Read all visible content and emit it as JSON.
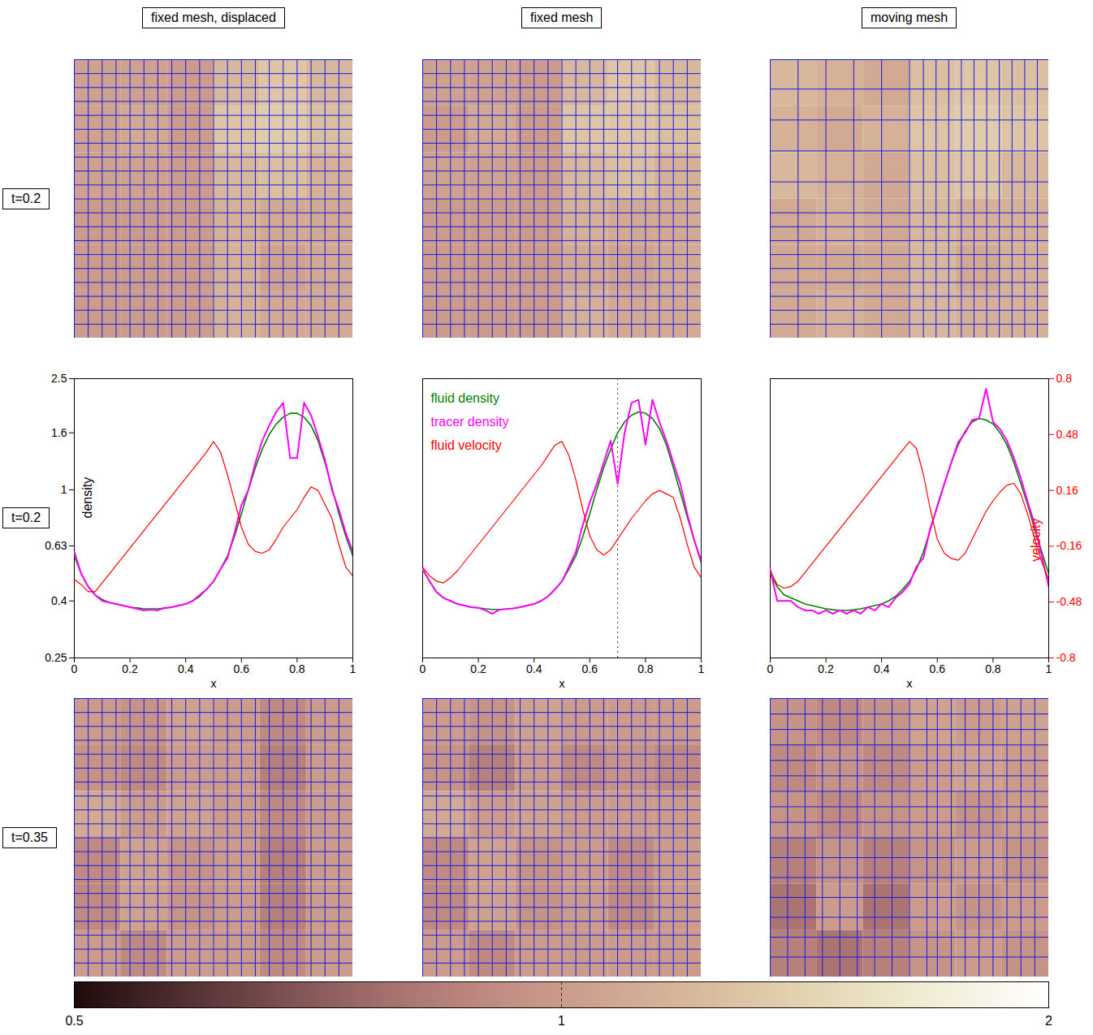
{
  "columns": [
    "fixed mesh, displaced",
    "fixed mesh",
    "moving mesh"
  ],
  "rows": [
    "t=0.2",
    "t=0.2",
    "t=0.35"
  ],
  "colorbar": {
    "lim": [
      0.5,
      2
    ],
    "ticks": [
      0.5,
      1,
      2
    ],
    "log": true
  },
  "chart_data": [
    {
      "type": "heatmap",
      "cells": [
        [
          1.05,
          1.05,
          1.0,
          1.2,
          1.3,
          1.2
        ],
        [
          1.05,
          1.1,
          1.0,
          1.3,
          1.35,
          1.25
        ],
        [
          1.05,
          1.05,
          1.0,
          1.2,
          1.25,
          1.15
        ],
        [
          1.0,
          1.0,
          1.0,
          1.15,
          1.1,
          1.1
        ],
        [
          1.0,
          1.0,
          1.0,
          1.15,
          1.05,
          1.1
        ],
        [
          1.0,
          1.0,
          1.0,
          1.15,
          1.1,
          1.1
        ]
      ]
    },
    {
      "type": "heatmap",
      "cells": [
        [
          1.05,
          1.05,
          1.0,
          1.2,
          1.3,
          1.2
        ],
        [
          1.0,
          1.1,
          1.0,
          1.3,
          1.3,
          1.25
        ],
        [
          1.05,
          1.05,
          1.0,
          1.2,
          1.25,
          1.15
        ],
        [
          1.0,
          1.0,
          1.0,
          1.15,
          1.1,
          1.1
        ],
        [
          1.0,
          1.0,
          1.0,
          1.1,
          1.05,
          1.1
        ],
        [
          1.0,
          1.0,
          1.0,
          1.15,
          1.1,
          1.1
        ]
      ]
    },
    {
      "type": "heatmap",
      "cells": [
        [
          1.2,
          1.15,
          1.1,
          1.25,
          1.3,
          1.25
        ],
        [
          1.15,
          1.1,
          1.15,
          1.3,
          1.35,
          1.3
        ],
        [
          1.2,
          1.15,
          1.1,
          1.25,
          1.3,
          1.2
        ],
        [
          1.1,
          1.15,
          1.1,
          1.2,
          1.15,
          1.15
        ],
        [
          1.1,
          1.1,
          1.1,
          1.2,
          1.1,
          1.15
        ],
        [
          1.1,
          1.15,
          1.1,
          1.2,
          1.15,
          1.15
        ]
      ]
    },
    {
      "type": "line",
      "x": [
        0,
        0.025,
        0.05,
        0.075,
        0.1,
        0.125,
        0.15,
        0.175,
        0.2,
        0.225,
        0.25,
        0.275,
        0.3,
        0.325,
        0.35,
        0.375,
        0.4,
        0.425,
        0.45,
        0.475,
        0.5,
        0.525,
        0.55,
        0.575,
        0.6,
        0.625,
        0.65,
        0.675,
        0.7,
        0.725,
        0.75,
        0.775,
        0.8,
        0.825,
        0.85,
        0.875,
        0.9,
        0.925,
        0.95,
        0.975,
        1
      ],
      "xlim": [
        0,
        1
      ],
      "xticks": [
        0,
        0.2,
        0.4,
        0.6,
        0.8,
        1
      ],
      "x_label": "x",
      "log": "y",
      "ylim": [
        0.25,
        2.5
      ],
      "yticks": [
        0.25,
        0.4,
        0.63,
        1,
        1.6,
        2.5
      ],
      "y_label": "density",
      "y2lim": [
        -0.8,
        0.8
      ],
      "series": [
        {
          "name": "fluid density",
          "color": "#008000",
          "values": [
            0.58,
            0.5,
            0.45,
            0.42,
            0.405,
            0.395,
            0.39,
            0.385,
            0.38,
            0.378,
            0.375,
            0.375,
            0.375,
            0.377,
            0.38,
            0.385,
            0.39,
            0.4,
            0.415,
            0.44,
            0.47,
            0.52,
            0.58,
            0.68,
            0.82,
            1.0,
            1.2,
            1.4,
            1.58,
            1.72,
            1.82,
            1.88,
            1.88,
            1.82,
            1.7,
            1.5,
            1.25,
            1.02,
            0.82,
            0.68,
            0.58
          ]
        },
        {
          "name": "tracer density",
          "color": "#ff00ff",
          "values": [
            0.6,
            0.5,
            0.45,
            0.42,
            0.4,
            0.395,
            0.39,
            0.385,
            0.38,
            0.375,
            0.37,
            0.372,
            0.37,
            0.378,
            0.38,
            0.385,
            0.39,
            0.4,
            0.42,
            0.44,
            0.47,
            0.52,
            0.57,
            0.7,
            0.88,
            1.0,
            1.25,
            1.5,
            1.7,
            1.9,
            2.05,
            1.3,
            1.3,
            2.05,
            1.85,
            1.55,
            1.28,
            1.0,
            0.85,
            0.7,
            0.6
          ]
        },
        {
          "name": "fluid velocity",
          "color": "#ff0000",
          "axis": "y2",
          "values": [
            -0.35,
            -0.38,
            -0.42,
            -0.42,
            -0.37,
            -0.32,
            -0.27,
            -0.22,
            -0.17,
            -0.12,
            -0.07,
            -0.02,
            0.03,
            0.08,
            0.13,
            0.18,
            0.23,
            0.28,
            0.33,
            0.38,
            0.44,
            0.38,
            0.25,
            0.1,
            -0.05,
            -0.15,
            -0.19,
            -0.2,
            -0.18,
            -0.12,
            -0.05,
            0.0,
            0.05,
            0.12,
            0.18,
            0.16,
            0.08,
            0.0,
            -0.15,
            -0.28,
            -0.33
          ]
        }
      ]
    },
    {
      "type": "line",
      "x": [
        0,
        0.025,
        0.05,
        0.075,
        0.1,
        0.125,
        0.15,
        0.175,
        0.2,
        0.225,
        0.25,
        0.275,
        0.3,
        0.325,
        0.35,
        0.375,
        0.4,
        0.425,
        0.45,
        0.475,
        0.5,
        0.525,
        0.55,
        0.575,
        0.6,
        0.625,
        0.65,
        0.675,
        0.7,
        0.725,
        0.75,
        0.775,
        0.8,
        0.825,
        0.85,
        0.875,
        0.9,
        0.925,
        0.95,
        0.975,
        1
      ],
      "xlim": [
        0,
        1
      ],
      "xticks": [
        0,
        0.2,
        0.4,
        0.6,
        0.8,
        1
      ],
      "x_label": "x",
      "log": "y",
      "ylim": [
        0.25,
        2.5
      ],
      "y2lim": [
        -0.8,
        0.8
      ],
      "legend": "top-left",
      "reference_line_x": 0.7,
      "series": [
        {
          "name": "fluid density",
          "color": "#008000",
          "values": [
            0.52,
            0.47,
            0.43,
            0.41,
            0.4,
            0.39,
            0.385,
            0.38,
            0.378,
            0.375,
            0.373,
            0.373,
            0.374,
            0.376,
            0.38,
            0.385,
            0.39,
            0.4,
            0.415,
            0.44,
            0.47,
            0.52,
            0.58,
            0.68,
            0.82,
            1.0,
            1.2,
            1.4,
            1.6,
            1.75,
            1.85,
            1.9,
            1.88,
            1.8,
            1.66,
            1.45,
            1.2,
            0.98,
            0.8,
            0.66,
            0.56
          ]
        },
        {
          "name": "tracer density",
          "color": "#ff00ff",
          "values": [
            0.52,
            0.47,
            0.43,
            0.41,
            0.4,
            0.39,
            0.385,
            0.38,
            0.378,
            0.37,
            0.36,
            0.372,
            0.374,
            0.376,
            0.38,
            0.385,
            0.39,
            0.4,
            0.415,
            0.44,
            0.47,
            0.53,
            0.6,
            0.75,
            0.9,
            1.05,
            1.25,
            1.5,
            1.05,
            1.6,
            2.05,
            2.1,
            1.45,
            2.1,
            1.75,
            1.5,
            1.25,
            1.05,
            0.82,
            0.66,
            0.55
          ]
        },
        {
          "name": "fluid velocity",
          "color": "#ff0000",
          "axis": "y2",
          "values": [
            -0.28,
            -0.33,
            -0.36,
            -0.37,
            -0.34,
            -0.3,
            -0.25,
            -0.2,
            -0.15,
            -0.1,
            -0.05,
            0.0,
            0.05,
            0.1,
            0.15,
            0.2,
            0.25,
            0.3,
            0.36,
            0.42,
            0.44,
            0.36,
            0.22,
            0.05,
            -0.1,
            -0.18,
            -0.21,
            -0.18,
            -0.12,
            -0.06,
            0.0,
            0.05,
            0.1,
            0.14,
            0.16,
            0.14,
            0.12,
            0.0,
            -0.15,
            -0.28,
            -0.34
          ]
        }
      ]
    },
    {
      "type": "line",
      "x": [
        0,
        0.025,
        0.05,
        0.075,
        0.1,
        0.125,
        0.15,
        0.175,
        0.2,
        0.225,
        0.25,
        0.275,
        0.3,
        0.325,
        0.35,
        0.375,
        0.4,
        0.425,
        0.45,
        0.475,
        0.5,
        0.525,
        0.55,
        0.575,
        0.6,
        0.625,
        0.65,
        0.675,
        0.7,
        0.725,
        0.75,
        0.775,
        0.8,
        0.825,
        0.85,
        0.875,
        0.9,
        0.925,
        0.95,
        0.975,
        1
      ],
      "xlim": [
        0,
        1
      ],
      "xticks": [
        0,
        0.2,
        0.4,
        0.6,
        0.8,
        1
      ],
      "x_label": "x",
      "log": "y",
      "ylim": [
        0.25,
        2.5
      ],
      "y2lim": [
        -0.8,
        0.8
      ],
      "y2ticks": [
        -0.8,
        -0.48,
        -0.16,
        0.16,
        0.48,
        0.8
      ],
      "y2_label": "velocity",
      "series": [
        {
          "name": "fluid density",
          "color": "#008000",
          "values": [
            0.5,
            0.45,
            0.42,
            0.41,
            0.4,
            0.39,
            0.385,
            0.38,
            0.375,
            0.372,
            0.37,
            0.37,
            0.372,
            0.375,
            0.38,
            0.385,
            0.39,
            0.4,
            0.415,
            0.44,
            0.47,
            0.52,
            0.6,
            0.72,
            0.88,
            1.05,
            1.25,
            1.45,
            1.62,
            1.75,
            1.8,
            1.78,
            1.72,
            1.6,
            1.45,
            1.25,
            1.05,
            0.88,
            0.72,
            0.6,
            0.5
          ]
        },
        {
          "name": "tracer density",
          "color": "#ff00ff",
          "values": [
            0.52,
            0.4,
            0.4,
            0.4,
            0.38,
            0.37,
            0.37,
            0.36,
            0.37,
            0.36,
            0.37,
            0.36,
            0.37,
            0.36,
            0.38,
            0.37,
            0.39,
            0.38,
            0.41,
            0.43,
            0.46,
            0.53,
            0.57,
            0.73,
            0.87,
            1.05,
            1.25,
            1.48,
            1.6,
            1.78,
            1.8,
            2.3,
            1.75,
            1.65,
            1.5,
            1.3,
            1.1,
            0.9,
            0.75,
            0.58,
            0.45
          ]
        },
        {
          "name": "fluid velocity",
          "color": "#ff0000",
          "axis": "y2",
          "values": [
            -0.3,
            -0.38,
            -0.4,
            -0.39,
            -0.36,
            -0.31,
            -0.26,
            -0.21,
            -0.16,
            -0.11,
            -0.06,
            -0.01,
            0.04,
            0.09,
            0.14,
            0.19,
            0.24,
            0.29,
            0.34,
            0.39,
            0.44,
            0.4,
            0.25,
            0.05,
            -0.12,
            -0.2,
            -0.23,
            -0.24,
            -0.2,
            -0.12,
            -0.04,
            0.04,
            0.1,
            0.15,
            0.19,
            0.2,
            0.14,
            0.02,
            -0.12,
            -0.25,
            -0.35
          ]
        }
      ]
    },
    {
      "type": "heatmap",
      "cells": [
        [
          1.0,
          0.95,
          1.05,
          1.0,
          0.9,
          1.0
        ],
        [
          0.95,
          0.9,
          1.0,
          1.0,
          0.85,
          1.0
        ],
        [
          1.1,
          1.0,
          1.05,
          1.0,
          0.9,
          1.0
        ],
        [
          0.9,
          1.05,
          0.95,
          1.0,
          0.85,
          1.0
        ],
        [
          0.9,
          1.05,
          0.95,
          1.0,
          0.85,
          1.0
        ],
        [
          1.0,
          0.9,
          1.0,
          1.0,
          0.9,
          1.0
        ]
      ]
    },
    {
      "type": "heatmap",
      "cells": [
        [
          1.0,
          0.95,
          1.05,
          1.0,
          1.0,
          1.0
        ],
        [
          0.95,
          0.85,
          1.0,
          0.9,
          0.95,
          0.9
        ],
        [
          1.1,
          1.0,
          1.05,
          1.0,
          1.0,
          1.0
        ],
        [
          0.9,
          1.05,
          0.95,
          1.0,
          0.9,
          1.0
        ],
        [
          0.9,
          1.05,
          0.95,
          1.0,
          0.9,
          1.0
        ],
        [
          1.0,
          0.9,
          1.0,
          1.0,
          1.0,
          1.0
        ]
      ]
    },
    {
      "type": "heatmap",
      "cells": [
        [
          0.95,
          0.9,
          0.95,
          1.05,
          1.0,
          1.05
        ],
        [
          0.9,
          0.95,
          0.9,
          1.0,
          1.05,
          1.0
        ],
        [
          0.95,
          0.9,
          0.95,
          1.0,
          0.95,
          1.0
        ],
        [
          0.85,
          0.95,
          0.85,
          0.95,
          1.0,
          0.95
        ],
        [
          0.8,
          1.0,
          0.8,
          1.0,
          0.95,
          1.0
        ],
        [
          0.85,
          0.8,
          0.85,
          0.95,
          1.0,
          0.95
        ]
      ]
    }
  ]
}
